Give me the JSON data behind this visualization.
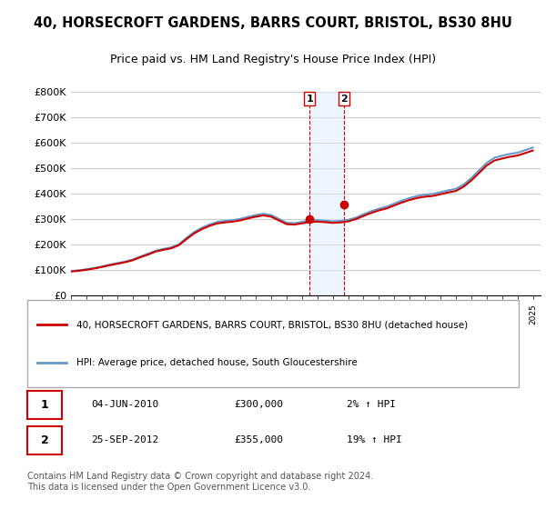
{
  "title_line1": "40, HORSECROFT GARDENS, BARRS COURT, BRISTOL, BS30 8HU",
  "title_line2": "Price paid vs. HM Land Registry's House Price Index (HPI)",
  "ylabel": "",
  "xlabel": "",
  "ylim": [
    0,
    800000
  ],
  "yticks": [
    0,
    100000,
    200000,
    300000,
    400000,
    500000,
    600000,
    700000,
    800000
  ],
  "ytick_labels": [
    "£0",
    "£100K",
    "£200K",
    "£300K",
    "£400K",
    "£500K",
    "£600K",
    "£700K",
    "£800K"
  ],
  "hpi_color": "#6699cc",
  "price_color": "#cc0000",
  "legend_price_label": "40, HORSECROFT GARDENS, BARRS COURT, BRISTOL, BS30 8HU (detached house)",
  "legend_hpi_label": "HPI: Average price, detached house, South Gloucestershire",
  "transaction1_date": "2010-06-04",
  "transaction1_price": 300000,
  "transaction1_label": "1",
  "transaction1_text": "04-JUN-2010    £300,000    2% ↑ HPI",
  "transaction2_date": "2012-09-25",
  "transaction2_price": 355000,
  "transaction2_label": "2",
  "transaction2_text": "25-SEP-2012    £355,000    19% ↑ HPI",
  "footer": "Contains HM Land Registry data © Crown copyright and database right 2024.\nThis data is licensed under the Open Government Licence v3.0.",
  "bg_color": "#ffffff",
  "grid_color": "#cccccc",
  "shade_color": "#ddeeff"
}
